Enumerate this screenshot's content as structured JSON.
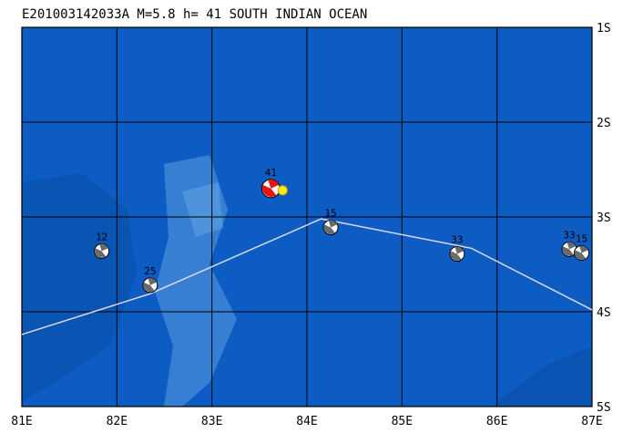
{
  "map": {
    "title": "E201003142033A M=5.8 h= 41 SOUTH INDIAN OCEAN",
    "xlim": [
      81,
      87
    ],
    "ylim": [
      -5,
      -1
    ],
    "xticks": [
      {
        "value": 81,
        "label": "81E"
      },
      {
        "value": 82,
        "label": "82E"
      },
      {
        "value": 83,
        "label": "83E"
      },
      {
        "value": 84,
        "label": "84E"
      },
      {
        "value": 85,
        "label": "85E"
      },
      {
        "value": 86,
        "label": "86E"
      },
      {
        "value": 87,
        "label": "87E"
      }
    ],
    "yticks": [
      {
        "value": -1,
        "label": "1S"
      },
      {
        "value": -2,
        "label": "2S"
      },
      {
        "value": -3,
        "label": "3S"
      },
      {
        "value": -4,
        "label": "4S"
      },
      {
        "value": -5,
        "label": "5S"
      }
    ],
    "grid": true,
    "boundary": {
      "color": "#d8d8e8",
      "lon": [
        81,
        82.35,
        84.15,
        85.73,
        87
      ],
      "lat": [
        -4.24,
        -3.81,
        -3.02,
        -3.33,
        -3.98
      ]
    },
    "events": [
      {
        "lon": 83.62,
        "lat": -2.7,
        "label": "41",
        "color": "#ee1111"
      },
      {
        "lon": 81.84,
        "lat": -3.36,
        "label": "12",
        "color": "#6a6a6a"
      },
      {
        "lon": 82.35,
        "lat": -3.72,
        "label": "25",
        "color": "#6a6a6a"
      },
      {
        "lon": 84.25,
        "lat": -3.11,
        "label": "15",
        "color": "#6a6a6a"
      },
      {
        "lon": 85.58,
        "lat": -3.39,
        "label": "33",
        "color": "#6a6a6a"
      },
      {
        "lon": 86.76,
        "lat": -3.34,
        "label": "33",
        "color": "#6a6a6a"
      },
      {
        "lon": 86.89,
        "lat": -3.38,
        "label": "15",
        "color": "#6a6a6a"
      }
    ]
  }
}
